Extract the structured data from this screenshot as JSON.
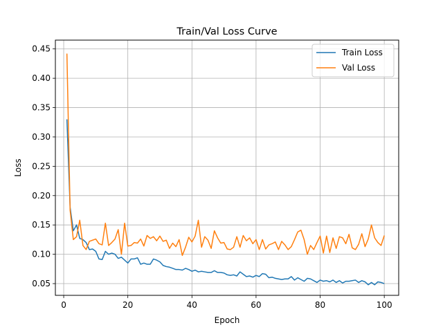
{
  "chart_data": {
    "type": "line",
    "title": "Train/Val Loss Curve",
    "xlabel": "Epoch",
    "ylabel": "Loss",
    "xlim": [
      -2.6,
      104.5
    ],
    "ylim": [
      0.03,
      0.465
    ],
    "xticks": [
      0,
      20,
      40,
      60,
      80,
      100
    ],
    "yticks": [
      0.05,
      0.1,
      0.15,
      0.2,
      0.25,
      0.3,
      0.35,
      0.4,
      0.45
    ],
    "grid": true,
    "legend_position": "top-right",
    "x": [
      1,
      2,
      3,
      4,
      5,
      6,
      7,
      8,
      9,
      10,
      11,
      12,
      13,
      14,
      15,
      16,
      17,
      18,
      19,
      20,
      21,
      22,
      23,
      24,
      25,
      26,
      27,
      28,
      29,
      30,
      31,
      32,
      33,
      34,
      35,
      36,
      37,
      38,
      39,
      40,
      41,
      42,
      43,
      44,
      45,
      46,
      47,
      48,
      49,
      50,
      51,
      52,
      53,
      54,
      55,
      56,
      57,
      58,
      59,
      60,
      61,
      62,
      63,
      64,
      65,
      66,
      67,
      68,
      69,
      70,
      71,
      72,
      73,
      74,
      75,
      76,
      77,
      78,
      79,
      80,
      81,
      82,
      83,
      84,
      85,
      86,
      87,
      88,
      89,
      90,
      91,
      92,
      93,
      94,
      95,
      96,
      97,
      98,
      99,
      100
    ],
    "series": [
      {
        "name": "Train Loss",
        "color": "#1f77b4",
        "values": [
          0.33,
          0.18,
          0.14,
          0.15,
          0.127,
          0.125,
          0.12,
          0.108,
          0.109,
          0.105,
          0.092,
          0.091,
          0.105,
          0.1,
          0.102,
          0.1,
          0.093,
          0.095,
          0.09,
          0.085,
          0.092,
          0.092,
          0.094,
          0.083,
          0.085,
          0.083,
          0.083,
          0.092,
          0.09,
          0.087,
          0.081,
          0.079,
          0.078,
          0.076,
          0.074,
          0.074,
          0.073,
          0.076,
          0.074,
          0.071,
          0.073,
          0.07,
          0.071,
          0.07,
          0.069,
          0.069,
          0.072,
          0.069,
          0.069,
          0.068,
          0.065,
          0.064,
          0.065,
          0.063,
          0.07,
          0.066,
          0.062,
          0.063,
          0.061,
          0.064,
          0.062,
          0.067,
          0.066,
          0.06,
          0.061,
          0.059,
          0.058,
          0.057,
          0.058,
          0.058,
          0.062,
          0.056,
          0.06,
          0.057,
          0.054,
          0.059,
          0.058,
          0.055,
          0.052,
          0.056,
          0.054,
          0.055,
          0.053,
          0.056,
          0.052,
          0.055,
          0.051,
          0.054,
          0.054,
          0.055,
          0.056,
          0.052,
          0.055,
          0.053,
          0.048,
          0.052,
          0.048,
          0.053,
          0.052,
          0.05
        ]
      },
      {
        "name": "Val Loss",
        "color": "#ff7f0e",
        "values": [
          0.442,
          0.175,
          0.125,
          0.13,
          0.158,
          0.115,
          0.108,
          0.122,
          0.124,
          0.126,
          0.118,
          0.116,
          0.153,
          0.115,
          0.12,
          0.126,
          0.142,
          0.1,
          0.153,
          0.114,
          0.115,
          0.12,
          0.119,
          0.126,
          0.114,
          0.132,
          0.127,
          0.13,
          0.123,
          0.131,
          0.122,
          0.124,
          0.11,
          0.119,
          0.113,
          0.125,
          0.098,
          0.112,
          0.129,
          0.121,
          0.131,
          0.158,
          0.112,
          0.13,
          0.124,
          0.11,
          0.14,
          0.128,
          0.119,
          0.12,
          0.109,
          0.108,
          0.112,
          0.13,
          0.112,
          0.132,
          0.123,
          0.128,
          0.118,
          0.125,
          0.108,
          0.125,
          0.109,
          0.116,
          0.118,
          0.121,
          0.108,
          0.122,
          0.116,
          0.108,
          0.113,
          0.125,
          0.138,
          0.141,
          0.125,
          0.1,
          0.115,
          0.108,
          0.12,
          0.131,
          0.102,
          0.131,
          0.103,
          0.128,
          0.11,
          0.13,
          0.128,
          0.118,
          0.134,
          0.111,
          0.108,
          0.117,
          0.135,
          0.113,
          0.126,
          0.15,
          0.128,
          0.12,
          0.115,
          0.132
        ]
      }
    ]
  }
}
